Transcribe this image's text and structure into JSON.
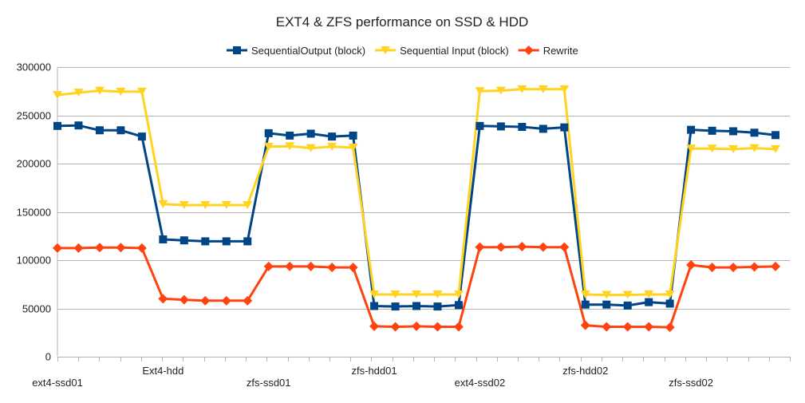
{
  "chart_data": {
    "type": "line",
    "title": "EXT4 & ZFS performance on SSD & HDD",
    "xlabel": "",
    "ylabel": "",
    "ylim": [
      0,
      300000
    ],
    "yticks": [
      0,
      50000,
      100000,
      150000,
      200000,
      250000,
      300000
    ],
    "grid": true,
    "legend_position": "top",
    "x_tick_labels": [
      {
        "index": 0,
        "label": "ext4-ssd01"
      },
      {
        "index": 5,
        "label": "Ext4-hdd"
      },
      {
        "index": 10,
        "label": "zfs-ssd01"
      },
      {
        "index": 15,
        "label": "zfs-hdd01"
      },
      {
        "index": 20,
        "label": "ext4-ssd02"
      },
      {
        "index": 25,
        "label": "zfs-hdd02"
      },
      {
        "index": 30,
        "label": "zfs-ssd02"
      }
    ],
    "point_count": 35,
    "series": [
      {
        "name": "SequentialOutput (block)",
        "color": "#004586",
        "marker": "square",
        "values": [
          239000,
          239500,
          234500,
          234500,
          228000,
          121500,
          120500,
          119500,
          119500,
          119500,
          231500,
          229000,
          231000,
          228000,
          229000,
          52500,
          52000,
          52500,
          52000,
          53500,
          239000,
          238500,
          238000,
          236000,
          237500,
          54000,
          54000,
          53000,
          56500,
          55000,
          235000,
          234000,
          233500,
          232000,
          229500
        ]
      },
      {
        "name": "Sequential Input (block)",
        "color": "#ffd320",
        "marker": "triangle-down",
        "values": [
          271000,
          273500,
          275500,
          274500,
          274500,
          158000,
          157000,
          157000,
          157000,
          157000,
          217500,
          218000,
          216000,
          217500,
          216500,
          64500,
          64500,
          64500,
          64500,
          64500,
          275000,
          275500,
          277000,
          277000,
          277000,
          64500,
          64000,
          64000,
          64500,
          64500,
          215500,
          215500,
          215000,
          216000,
          215000
        ]
      },
      {
        "name": "Rewrite",
        "color": "#ff420e",
        "marker": "diamond",
        "values": [
          112500,
          112500,
          113000,
          113000,
          112500,
          60000,
          59000,
          58000,
          58000,
          58000,
          93500,
          93500,
          93500,
          92500,
          92500,
          31500,
          31000,
          31500,
          31000,
          31000,
          113500,
          113500,
          114000,
          113500,
          113500,
          32500,
          31000,
          31000,
          31000,
          30500,
          95000,
          92500,
          92500,
          93000,
          93500
        ]
      }
    ]
  }
}
